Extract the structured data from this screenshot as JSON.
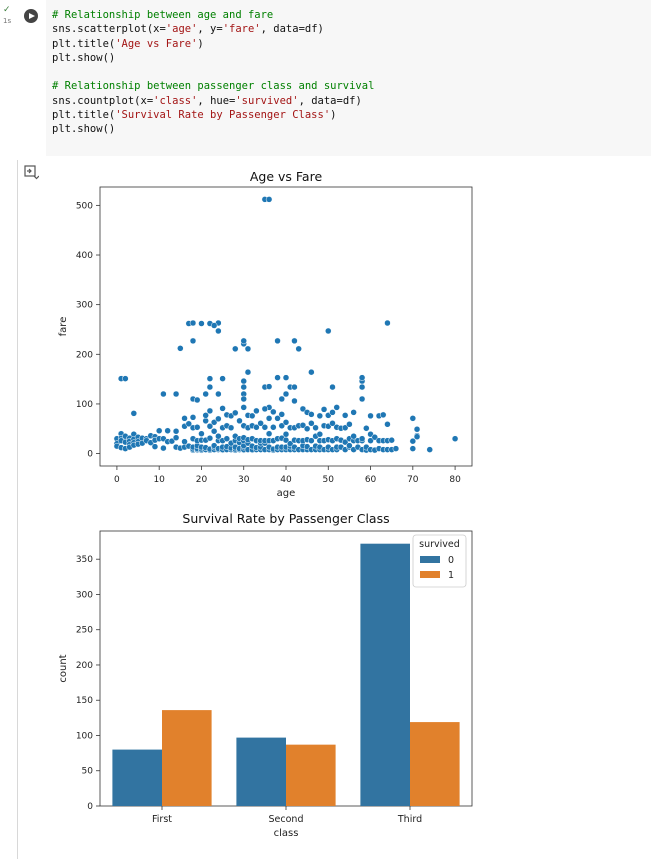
{
  "cell": {
    "status_check": "✓",
    "exec_time": "1s",
    "run_button_icon": "play-icon",
    "output_toggle_icon": "output-collapse-icon",
    "code_lines": [
      [
        {
          "t": "cm",
          "v": "# Relationship between age and fare"
        }
      ],
      [
        {
          "t": "pn",
          "v": "sns.scatterplot(x="
        },
        {
          "t": "st",
          "v": "'age'"
        },
        {
          "t": "pn",
          "v": ", y="
        },
        {
          "t": "st",
          "v": "'fare'"
        },
        {
          "t": "pn",
          "v": ", data=df)"
        }
      ],
      [
        {
          "t": "pn",
          "v": "plt.title("
        },
        {
          "t": "st",
          "v": "'Age vs Fare'"
        },
        {
          "t": "pn",
          "v": ")"
        }
      ],
      [
        {
          "t": "pn",
          "v": "plt.show()"
        }
      ],
      [
        {
          "t": "pn",
          "v": ""
        }
      ],
      [
        {
          "t": "cm",
          "v": "# Relationship between passenger class and survival"
        }
      ],
      [
        {
          "t": "pn",
          "v": "sns.countplot(x="
        },
        {
          "t": "st",
          "v": "'class'"
        },
        {
          "t": "pn",
          "v": ", hue="
        },
        {
          "t": "st",
          "v": "'survived'"
        },
        {
          "t": "pn",
          "v": ", data=df)"
        }
      ],
      [
        {
          "t": "pn",
          "v": "plt.title("
        },
        {
          "t": "st",
          "v": "'Survival Rate by Passenger Class'"
        },
        {
          "t": "pn",
          "v": ")"
        }
      ],
      [
        {
          "t": "pn",
          "v": "plt.show()"
        }
      ]
    ]
  },
  "chart_data": [
    {
      "type": "scatter",
      "title": "Age vs Fare",
      "xlabel": "age",
      "ylabel": "fare",
      "xlim": [
        -4,
        84
      ],
      "ylim": [
        -25,
        537
      ],
      "xticks": [
        0,
        10,
        20,
        30,
        40,
        50,
        60,
        70,
        80
      ],
      "yticks": [
        0,
        100,
        200,
        300,
        400,
        500
      ],
      "color": "#1f77b4",
      "points": [
        [
          35,
          512
        ],
        [
          36,
          512
        ],
        [
          17,
          262
        ],
        [
          18,
          263
        ],
        [
          20,
          262
        ],
        [
          22,
          262
        ],
        [
          24,
          263
        ],
        [
          23,
          258
        ],
        [
          24,
          247
        ],
        [
          50,
          247
        ],
        [
          64,
          263
        ],
        [
          15,
          212
        ],
        [
          18,
          227
        ],
        [
          28,
          211
        ],
        [
          30,
          221
        ],
        [
          30,
          227
        ],
        [
          31,
          211
        ],
        [
          38,
          227
        ],
        [
          42,
          227
        ],
        [
          43,
          211
        ],
        [
          1,
          151
        ],
        [
          2,
          151
        ],
        [
          4,
          81
        ],
        [
          11,
          120
        ],
        [
          14,
          120
        ],
        [
          18,
          110
        ],
        [
          19,
          108
        ],
        [
          21,
          120
        ],
        [
          22,
          151
        ],
        [
          22,
          134
        ],
        [
          25,
          151
        ],
        [
          24,
          120
        ],
        [
          30,
          146
        ],
        [
          30,
          134
        ],
        [
          30,
          120
        ],
        [
          30,
          110
        ],
        [
          31,
          164
        ],
        [
          35,
          134
        ],
        [
          36,
          135
        ],
        [
          38,
          153
        ],
        [
          40,
          153
        ],
        [
          41,
          134
        ],
        [
          42,
          134
        ],
        [
          39,
          110
        ],
        [
          40,
          120
        ],
        [
          36,
          93
        ],
        [
          42,
          106
        ],
        [
          46,
          164
        ],
        [
          51,
          134
        ],
        [
          58,
          146
        ],
        [
          58,
          153
        ],
        [
          58,
          134
        ],
        [
          58,
          110
        ],
        [
          62,
          76
        ],
        [
          63,
          78
        ],
        [
          70,
          71
        ],
        [
          71,
          49
        ],
        [
          71,
          36
        ],
        [
          0,
          30
        ],
        [
          0,
          20
        ],
        [
          0,
          15
        ],
        [
          1,
          40
        ],
        [
          1,
          31
        ],
        [
          1,
          26
        ],
        [
          1,
          12
        ],
        [
          2,
          35
        ],
        [
          2,
          23
        ],
        [
          2,
          10
        ],
        [
          3,
          31
        ],
        [
          3,
          25
        ],
        [
          3,
          18
        ],
        [
          3,
          13
        ],
        [
          4,
          39
        ],
        [
          4,
          29
        ],
        [
          4,
          22
        ],
        [
          4,
          17
        ],
        [
          5,
          33
        ],
        [
          5,
          24
        ],
        [
          5,
          19
        ],
        [
          6,
          31
        ],
        [
          6,
          21
        ],
        [
          7,
          30
        ],
        [
          7,
          26
        ],
        [
          8,
          36
        ],
        [
          8,
          22
        ],
        [
          9,
          34
        ],
        [
          9,
          27
        ],
        [
          9,
          14
        ],
        [
          10,
          30
        ],
        [
          10,
          46
        ],
        [
          11,
          30
        ],
        [
          11,
          11
        ],
        [
          12,
          46
        ],
        [
          12,
          24
        ],
        [
          13,
          25
        ],
        [
          14,
          45
        ],
        [
          14,
          32
        ],
        [
          14,
          13
        ],
        [
          15,
          11
        ],
        [
          16,
          24
        ],
        [
          16,
          13
        ],
        [
          16,
          55
        ],
        [
          16,
          71
        ],
        [
          17,
          60
        ],
        [
          17,
          15
        ],
        [
          18,
          7
        ],
        [
          18,
          9
        ],
        [
          18,
          13
        ],
        [
          18,
          30
        ],
        [
          18,
          52
        ],
        [
          18,
          73
        ],
        [
          19,
          7
        ],
        [
          19,
          8
        ],
        [
          19,
          10
        ],
        [
          19,
          16
        ],
        [
          19,
          26
        ],
        [
          19,
          53
        ],
        [
          20,
          7
        ],
        [
          20,
          9
        ],
        [
          20,
          13
        ],
        [
          20,
          27
        ],
        [
          20,
          40
        ],
        [
          21,
          8
        ],
        [
          21,
          12
        ],
        [
          21,
          27
        ],
        [
          21,
          66
        ],
        [
          21,
          77
        ],
        [
          22,
          7
        ],
        [
          22,
          9
        ],
        [
          22,
          31
        ],
        [
          22,
          55
        ],
        [
          22,
          86
        ],
        [
          23,
          8
        ],
        [
          23,
          13
        ],
        [
          23,
          16
        ],
        [
          23,
          45
        ],
        [
          23,
          63
        ],
        [
          24,
          8
        ],
        [
          24,
          10
        ],
        [
          24,
          26
        ],
        [
          24,
          35
        ],
        [
          24,
          70
        ],
        [
          25,
          7
        ],
        [
          25,
          8
        ],
        [
          25,
          13
        ],
        [
          25,
          26
        ],
        [
          25,
          52
        ],
        [
          25,
          91
        ],
        [
          26,
          8
        ],
        [
          26,
          14
        ],
        [
          26,
          30
        ],
        [
          26,
          56
        ],
        [
          26,
          78
        ],
        [
          27,
          8
        ],
        [
          27,
          11
        ],
        [
          27,
          21
        ],
        [
          27,
          52
        ],
        [
          27,
          76
        ],
        [
          28,
          7
        ],
        [
          28,
          9
        ],
        [
          28,
          13
        ],
        [
          28,
          26
        ],
        [
          28,
          35
        ],
        [
          28,
          82
        ],
        [
          29,
          8
        ],
        [
          29,
          10
        ],
        [
          29,
          22
        ],
        [
          29,
          30
        ],
        [
          29,
          66
        ],
        [
          30,
          7
        ],
        [
          30,
          8
        ],
        [
          30,
          13
        ],
        [
          30,
          16
        ],
        [
          30,
          26
        ],
        [
          30,
          32
        ],
        [
          30,
          56
        ],
        [
          30,
          93
        ],
        [
          31,
          8
        ],
        [
          31,
          21
        ],
        [
          31,
          28
        ],
        [
          31,
          52
        ],
        [
          31,
          77
        ],
        [
          32,
          7
        ],
        [
          32,
          8
        ],
        [
          32,
          15
        ],
        [
          32,
          30
        ],
        [
          32,
          56
        ],
        [
          32,
          76
        ],
        [
          33,
          8
        ],
        [
          33,
          12
        ],
        [
          33,
          26
        ],
        [
          33,
          53
        ],
        [
          33,
          86
        ],
        [
          34,
          8
        ],
        [
          34,
          13
        ],
        [
          34,
          21
        ],
        [
          34,
          26
        ],
        [
          34,
          61
        ],
        [
          35,
          8
        ],
        [
          35,
          21
        ],
        [
          35,
          26
        ],
        [
          35,
          53
        ],
        [
          35,
          90
        ],
        [
          36,
          8
        ],
        [
          36,
          13
        ],
        [
          36,
          26
        ],
        [
          36,
          40
        ],
        [
          36,
          71
        ],
        [
          37,
          7
        ],
        [
          37,
          9
        ],
        [
          37,
          26
        ],
        [
          37,
          53
        ],
        [
          37,
          84
        ],
        [
          38,
          8
        ],
        [
          38,
          13
        ],
        [
          38,
          30
        ],
        [
          38,
          71
        ],
        [
          39,
          8
        ],
        [
          39,
          13
        ],
        [
          39,
          31
        ],
        [
          39,
          56
        ],
        [
          39,
          79
        ],
        [
          40,
          8
        ],
        [
          40,
          13
        ],
        [
          40,
          27
        ],
        [
          40,
          39
        ],
        [
          40,
          63
        ],
        [
          41,
          8
        ],
        [
          41,
          15
        ],
        [
          41,
          20
        ],
        [
          41,
          52
        ],
        [
          42,
          8
        ],
        [
          42,
          13
        ],
        [
          42,
          27
        ],
        [
          42,
          52
        ],
        [
          43,
          8
        ],
        [
          43,
          26
        ],
        [
          43,
          56
        ],
        [
          44,
          8
        ],
        [
          44,
          16
        ],
        [
          44,
          26
        ],
        [
          44,
          57
        ],
        [
          44,
          90
        ],
        [
          45,
          8
        ],
        [
          45,
          14
        ],
        [
          45,
          28
        ],
        [
          45,
          50
        ],
        [
          45,
          83
        ],
        [
          46,
          8
        ],
        [
          46,
          26
        ],
        [
          46,
          61
        ],
        [
          46,
          79
        ],
        [
          47,
          8
        ],
        [
          47,
          15
        ],
        [
          47,
          35
        ],
        [
          47,
          52
        ],
        [
          48,
          8
        ],
        [
          48,
          13
        ],
        [
          48,
          26
        ],
        [
          48,
          39
        ],
        [
          48,
          76
        ],
        [
          49,
          8
        ],
        [
          49,
          26
        ],
        [
          49,
          56
        ],
        [
          49,
          89
        ],
        [
          50,
          8
        ],
        [
          50,
          13
        ],
        [
          50,
          28
        ],
        [
          50,
          55
        ],
        [
          50,
          77
        ],
        [
          51,
          8
        ],
        [
          51,
          26
        ],
        [
          51,
          61
        ],
        [
          51,
          83
        ],
        [
          52,
          8
        ],
        [
          52,
          13
        ],
        [
          52,
          30
        ],
        [
          52,
          53
        ],
        [
          52,
          93
        ],
        [
          53,
          13
        ],
        [
          53,
          27
        ],
        [
          53,
          51
        ],
        [
          54,
          8
        ],
        [
          54,
          23
        ],
        [
          54,
          52
        ],
        [
          54,
          77
        ],
        [
          55,
          13
        ],
        [
          55,
          16
        ],
        [
          55,
          30
        ],
        [
          55,
          59
        ],
        [
          56,
          8
        ],
        [
          56,
          26
        ],
        [
          56,
          35
        ],
        [
          56,
          83
        ],
        [
          57,
          13
        ],
        [
          57,
          26
        ],
        [
          58,
          8
        ],
        [
          58,
          26
        ],
        [
          58,
          30
        ],
        [
          59,
          7
        ],
        [
          59,
          13
        ],
        [
          59,
          51
        ],
        [
          60,
          8
        ],
        [
          60,
          26
        ],
        [
          60,
          39
        ],
        [
          60,
          76
        ],
        [
          61,
          7
        ],
        [
          61,
          33
        ],
        [
          62,
          10
        ],
        [
          62,
          26
        ],
        [
          63,
          8
        ],
        [
          63,
          26
        ],
        [
          64,
          8
        ],
        [
          64,
          26
        ],
        [
          64,
          59
        ],
        [
          65,
          8
        ],
        [
          65,
          27
        ],
        [
          66,
          10
        ],
        [
          70,
          10
        ],
        [
          70,
          25
        ],
        [
          71,
          34
        ],
        [
          74,
          8
        ],
        [
          80,
          30
        ]
      ]
    },
    {
      "type": "bar",
      "title": "Survival Rate by Passenger Class",
      "xlabel": "class",
      "ylabel": "count",
      "categories": [
        "First",
        "Second",
        "Third"
      ],
      "ylim": [
        0,
        390
      ],
      "yticks": [
        0,
        50,
        100,
        150,
        200,
        250,
        300,
        350
      ],
      "series": [
        {
          "name": "0",
          "values": [
            80,
            97,
            372
          ],
          "color": "#3274a1"
        },
        {
          "name": "1",
          "values": [
            136,
            87,
            119
          ],
          "color": "#e1812c"
        }
      ],
      "legend": {
        "title": "survived",
        "placement": "top-right"
      }
    }
  ]
}
